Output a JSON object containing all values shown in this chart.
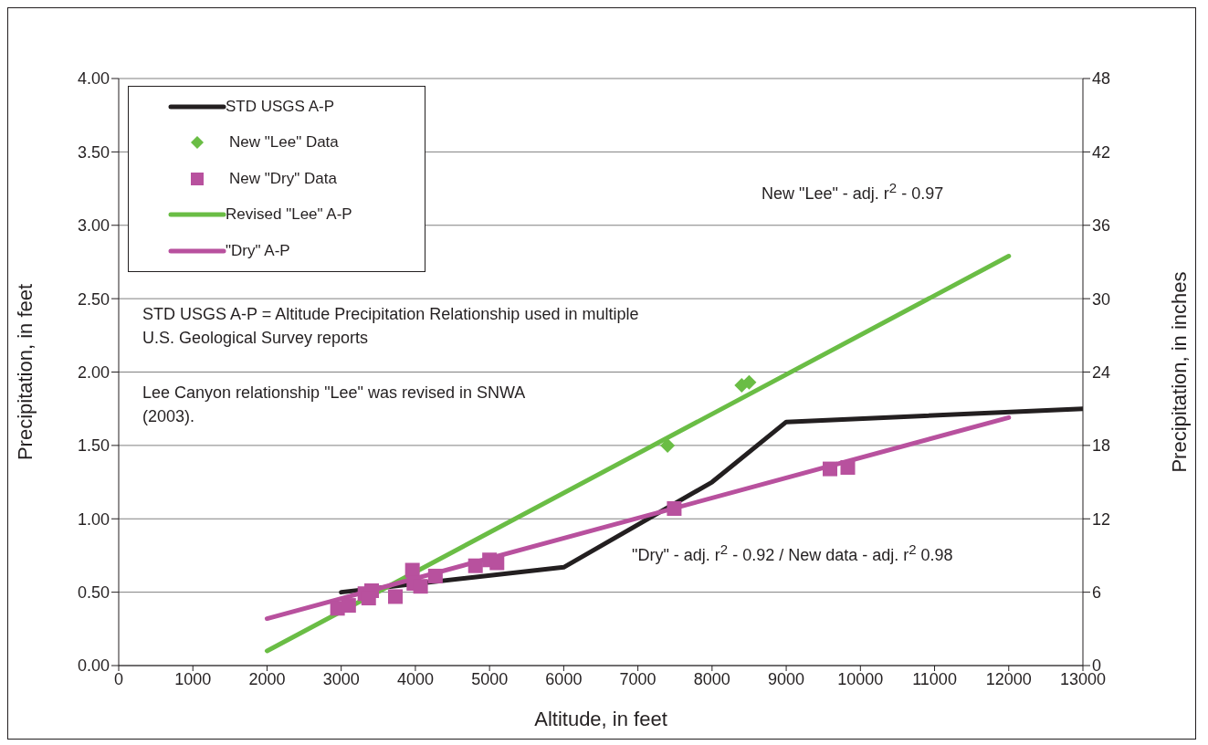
{
  "chart_data": {
    "type": "line",
    "xlabel": "Altitude, in feet",
    "ylabel": "Precipitation, in feet",
    "y2label": "Precipitation, in inches",
    "xlim": [
      0,
      13000
    ],
    "xticks": [
      0,
      1000,
      2000,
      3000,
      4000,
      5000,
      6000,
      7000,
      8000,
      9000,
      10000,
      11000,
      12000,
      13000
    ],
    "ylim": [
      0,
      4
    ],
    "yticks": [
      {
        "value": 0,
        "label": "0.00"
      },
      {
        "value": 0.5,
        "label": "0.50"
      },
      {
        "value": 1,
        "label": "1.00"
      },
      {
        "value": 1.5,
        "label": "1.50"
      },
      {
        "value": 2,
        "label": "2.00"
      },
      {
        "value": 2.5,
        "label": "2.50"
      },
      {
        "value": 3,
        "label": "3.00"
      },
      {
        "value": 3.5,
        "label": "3.50"
      },
      {
        "value": 4,
        "label": "4.00"
      }
    ],
    "y2lim": [
      0,
      48
    ],
    "y2ticks": [
      0,
      6,
      12,
      18,
      24,
      30,
      36,
      42,
      48
    ],
    "grid": "y",
    "legend": "top left",
    "line_style": "solid",
    "series": [
      {
        "name": "STD USGS A-P",
        "type": "line",
        "color": "#231f20",
        "x": [
          3000,
          6000,
          8000,
          9000,
          13000
        ],
        "values": [
          0.5,
          0.67,
          1.25,
          1.66,
          1.75
        ]
      },
      {
        "name": "New \"Lee\" Data",
        "type": "scatter",
        "marker": "diamond",
        "color": "#6abd45",
        "x": [
          7400,
          8400,
          8500
        ],
        "values": [
          1.5,
          1.91,
          1.93
        ]
      },
      {
        "name": "New \"Dry\" Data",
        "type": "scatter",
        "marker": "square",
        "color": "#b8519e",
        "x": [
          2950,
          3100,
          3320,
          3410,
          3370,
          3730,
          3960,
          3980,
          4070,
          4270,
          4810,
          5000,
          5100,
          7490,
          9590,
          9830
        ],
        "values": [
          0.39,
          0.41,
          0.49,
          0.51,
          0.46,
          0.47,
          0.65,
          0.56,
          0.54,
          0.61,
          0.68,
          0.72,
          0.7,
          1.07,
          1.34,
          1.35
        ]
      },
      {
        "name": "Revised \"Lee\" A-P",
        "color": "#6abd45",
        "x": [
          2000,
          12000
        ],
        "values": [
          0.1,
          2.79
        ]
      },
      {
        "name": "\"Dry\" A-P",
        "color": "#b8519e",
        "x": [
          2000,
          12000
        ],
        "values": [
          0.32,
          1.69
        ]
      }
    ],
    "annotations": [
      "New \"Lee\" - adj. r$^{2}$ - 0.97",
      "STD USGS A-P = Altitude Precipitation Relationship used in multiple U.S. Geological Survey reports",
      "Lee Canyon relationship  \"Lee\" was revised in SNWA (2003).",
      "\"Dry\" - adj. r$^{2}$ - 0.92 / New data - adj. r$^{2}$ 0.98"
    ]
  }
}
